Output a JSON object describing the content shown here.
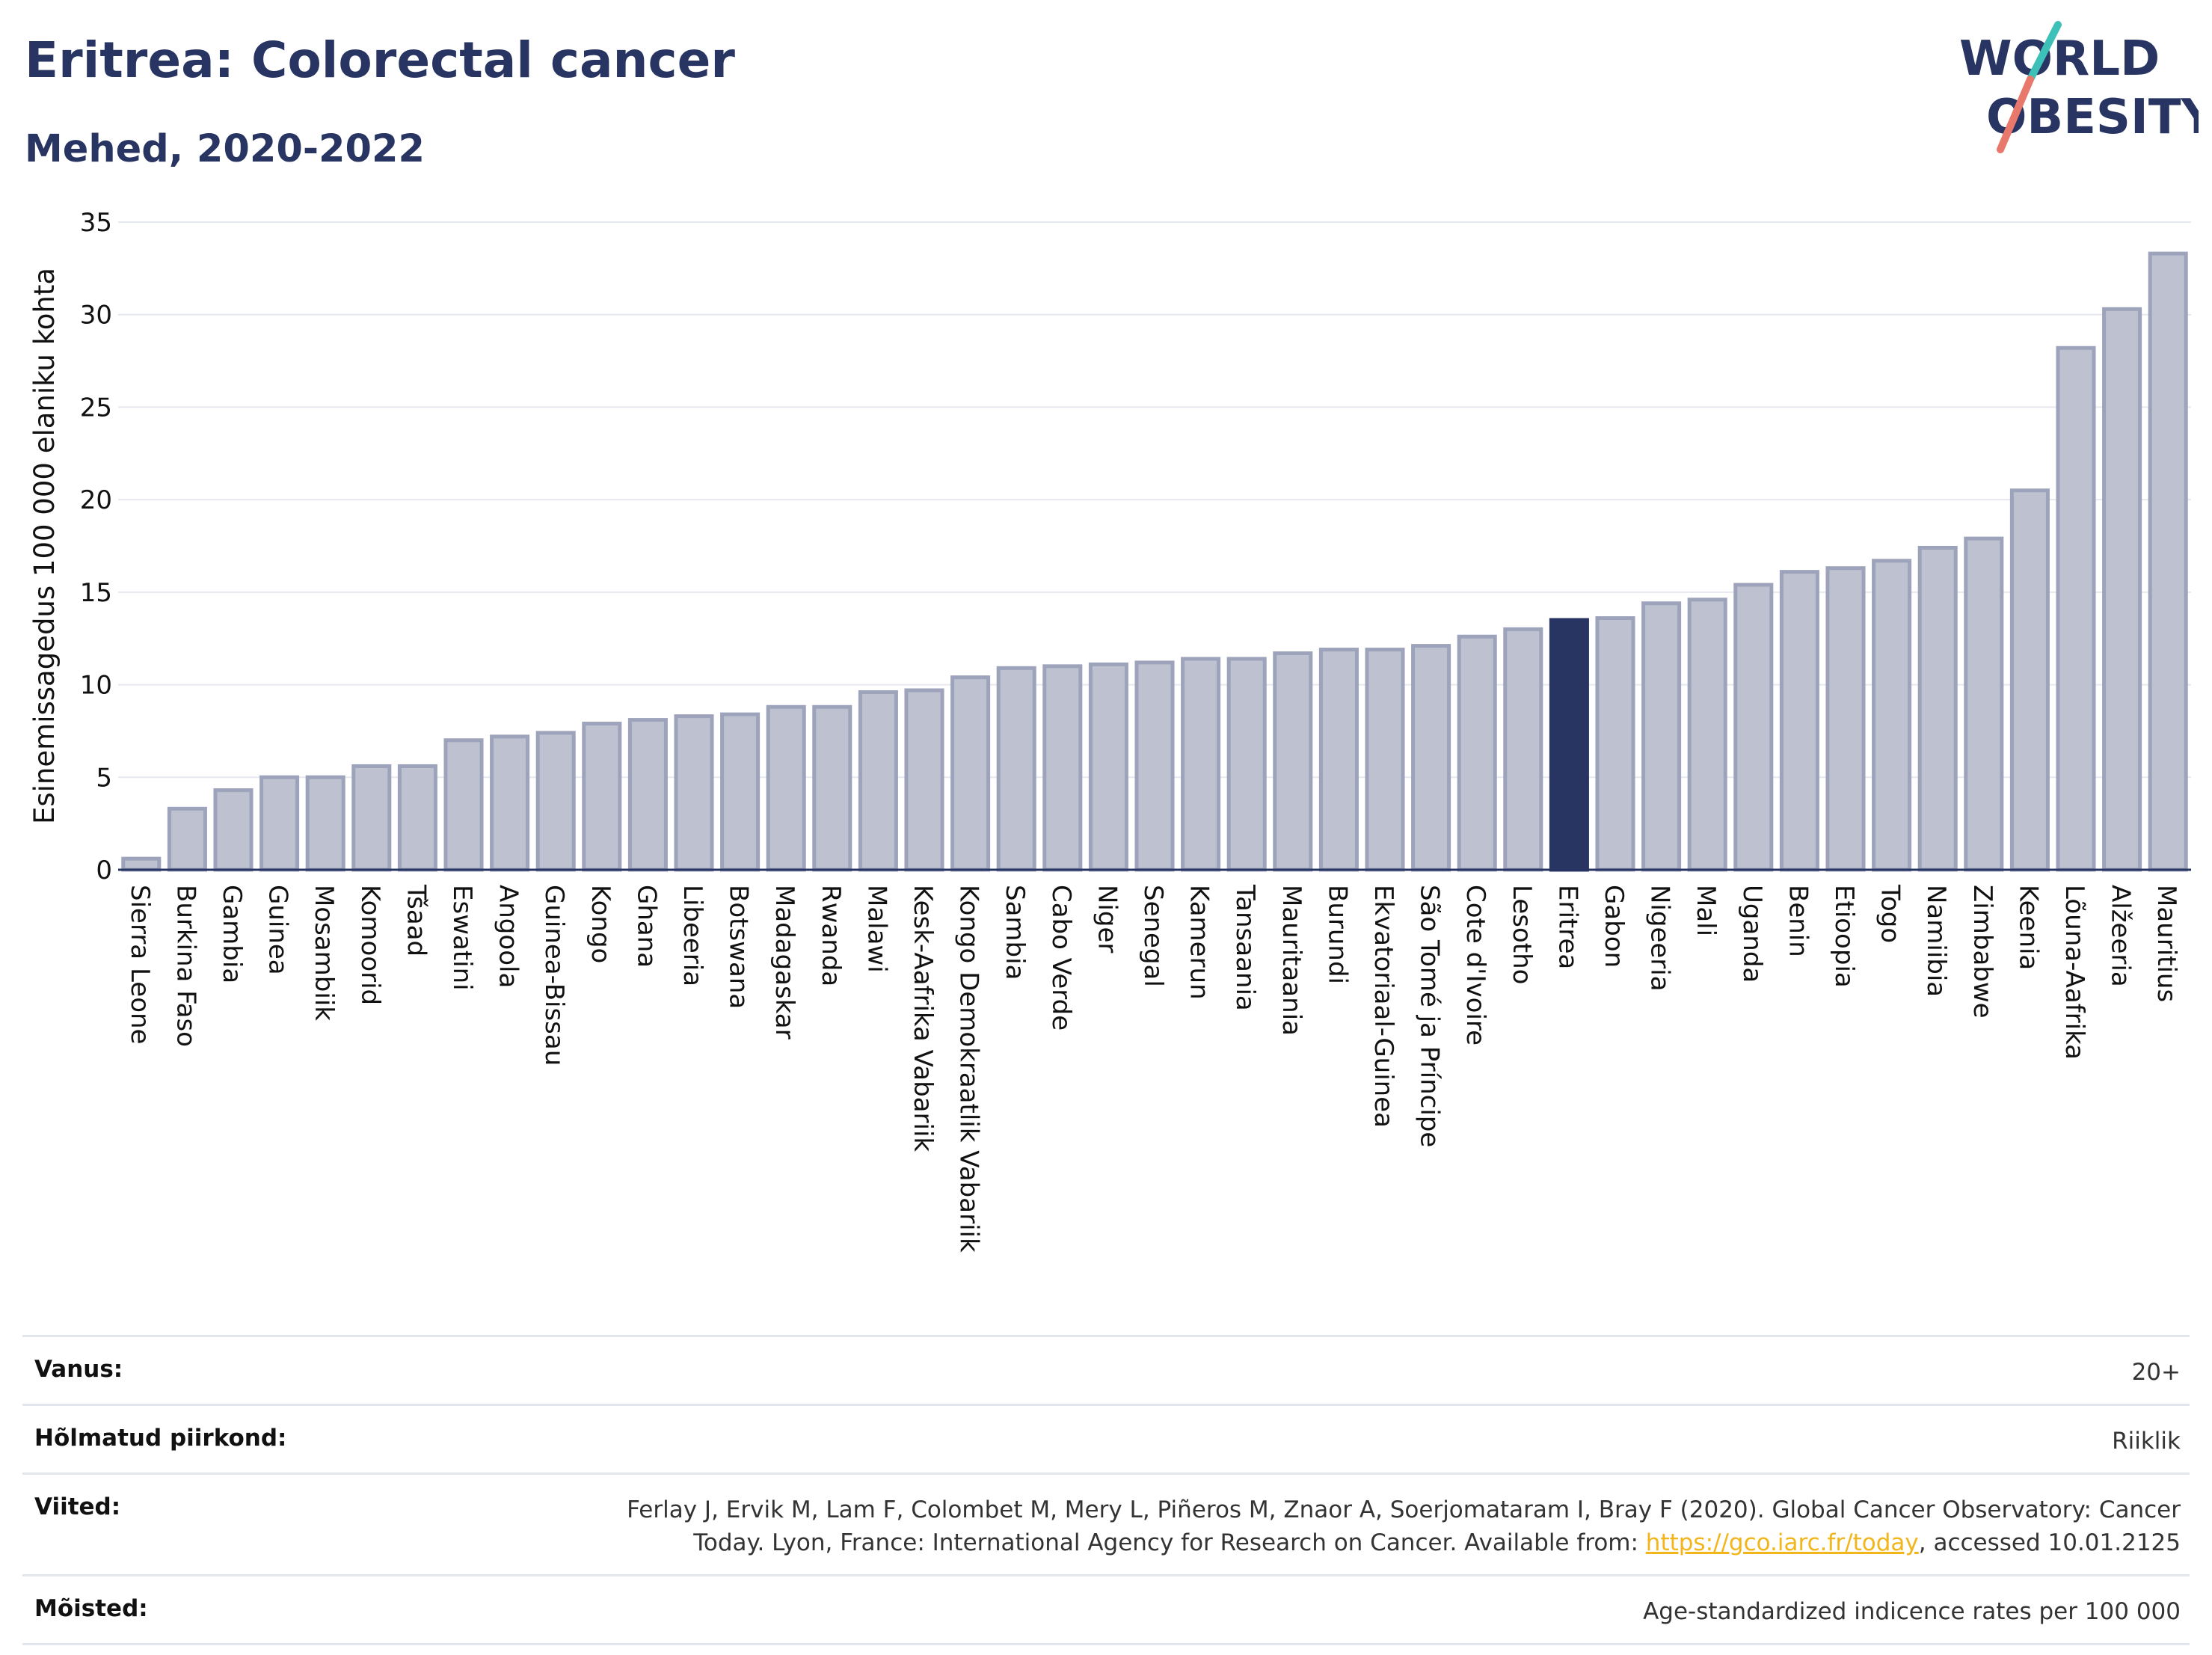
{
  "header": {
    "title": "Eritrea: Colorectal cancer",
    "subtitle": "Mehed, 2020-2022"
  },
  "logo": {
    "line1": "WORLD",
    "line2": "OBESITY",
    "colors": {
      "text": "#283462",
      "slash_teal": "#3cc0b8",
      "slash_coral": "#e8786b"
    }
  },
  "chart_data": {
    "type": "bar",
    "ylabel": "Esinemissagedus 100 000 elaniku kohta",
    "xlabel": "",
    "ylim": [
      0,
      35
    ],
    "yticks": [
      0,
      5,
      10,
      15,
      20,
      25,
      30,
      35
    ],
    "highlight": "Eritrea",
    "colors": {
      "bar": "#bec2d0",
      "bar_border": "#9da3ba",
      "highlight": "#283462"
    },
    "grid": true,
    "categories": [
      "Sierra Leone",
      "Burkina Faso",
      "Gambia",
      "Guinea",
      "Mosambiik",
      "Komoorid",
      "Tšaad",
      "Eswatini",
      "Angoola",
      "Guinea-Bissau",
      "Kongo",
      "Ghana",
      "Libeeria",
      "Botswana",
      "Madagaskar",
      "Rwanda",
      "Malawi",
      "Kesk-Aafrika Vabariik",
      "Kongo Demokraatlik Vabariik",
      "Sambia",
      "Cabo Verde",
      "Niger",
      "Senegal",
      "Kamerun",
      "Tansaania",
      "Mauritaania",
      "Burundi",
      "Ekvatoriaal-Guinea",
      "São Tomé ja Príncipe",
      "Cote d'Ivoire",
      "Lesotho",
      "Eritrea",
      "Gabon",
      "Nigeeria",
      "Mali",
      "Uganda",
      "Benin",
      "Etioopia",
      "Togo",
      "Namiibia",
      "Zimbabwe",
      "Keenia",
      "Lõuna-Aafrika",
      "Alžeeria",
      "Mauritius"
    ],
    "values": [
      0.6,
      3.3,
      4.3,
      5.0,
      5.0,
      5.6,
      5.6,
      7.0,
      7.2,
      7.4,
      7.9,
      8.1,
      8.3,
      8.4,
      8.8,
      8.8,
      9.6,
      9.7,
      10.4,
      10.9,
      11.0,
      11.1,
      11.2,
      11.4,
      11.4,
      11.7,
      11.9,
      11.9,
      12.1,
      12.6,
      13.0,
      13.5,
      13.6,
      14.4,
      14.6,
      15.4,
      16.1,
      16.3,
      16.7,
      17.4,
      17.9,
      20.5,
      28.2,
      30.3,
      33.3
    ]
  },
  "info": [
    {
      "label": "Vanus:",
      "value": "20+"
    },
    {
      "label": "Hõlmatud piirkond:",
      "value": "Riiklik"
    },
    {
      "label": "Viited:",
      "value_before": "Ferlay J, Ervik M, Lam F, Colombet M, Mery L, Piñeros M, Znaor A, Soerjomataram I, Bray F (2020). Global Cancer Observatory: Cancer Today. Lyon, France: International Agency for Research on Cancer. Available from: ",
      "link": "https://gco.iarc.fr/today",
      "value_after": ", accessed 10.01.2125"
    },
    {
      "label": "Mõisted:",
      "value": "Age-standardized indicence rates per 100 000"
    }
  ]
}
